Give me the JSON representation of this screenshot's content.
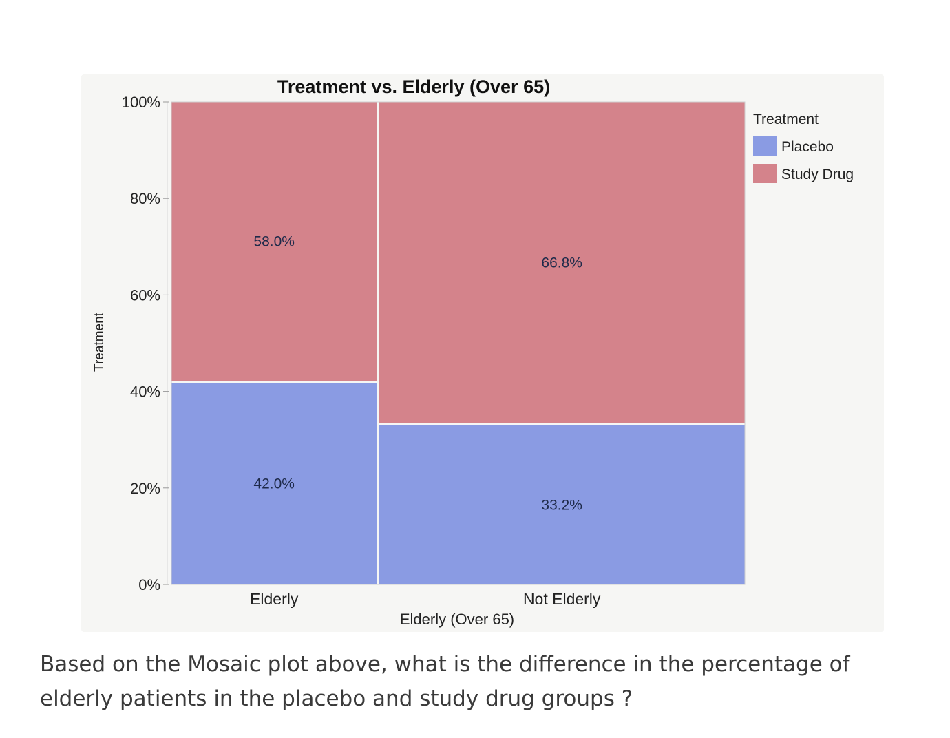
{
  "chart_data": {
    "type": "mosaic",
    "title": "Treatment vs. Elderly (Over 65)",
    "xlabel": "Elderly (Over 65)",
    "ylabel": "Treatment",
    "yticks": [
      "0%",
      "20%",
      "40%",
      "60%",
      "80%",
      "100%"
    ],
    "ylim": [
      0,
      100
    ],
    "categories": [
      "Elderly",
      "Not Elderly"
    ],
    "category_widths": [
      0.36,
      0.64
    ],
    "series": [
      {
        "name": "Placebo",
        "values": [
          42.0,
          33.2
        ],
        "labels": [
          "42.0%",
          "33.2%"
        ]
      },
      {
        "name": "Study Drug",
        "values": [
          58.0,
          66.8
        ],
        "labels": [
          "58.0%",
          "66.8%"
        ]
      }
    ],
    "legend": {
      "title": "Treatment",
      "position": "top-right",
      "entries": [
        "Placebo",
        "Study Drug"
      ]
    },
    "colors": {
      "Placebo": "#8a9be3",
      "Study Drug": "#d4838b"
    },
    "grid": false
  },
  "question": "Based on the Mosaic plot above, what is  the  difference in the percentage of elderly patients in the placebo and study drug groups ?"
}
